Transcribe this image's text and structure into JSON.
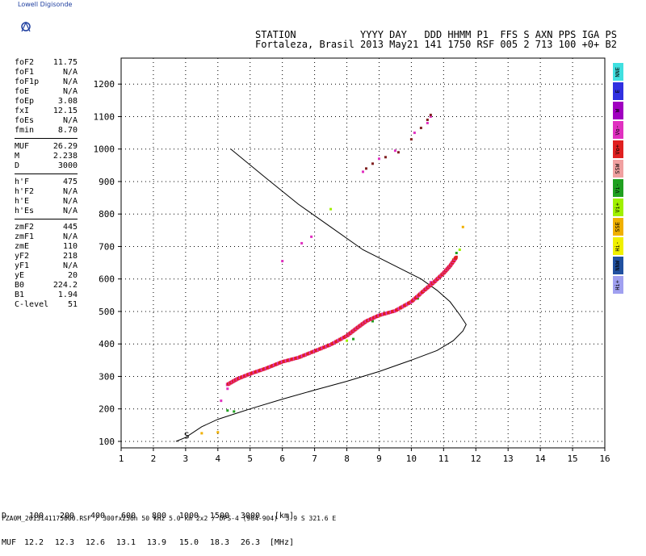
{
  "app_label": "Lowell Digisonde",
  "header": {
    "line1": "STATION           YYYY DAY   DDD HHMM P1  FFS S AXN PPS IGA PS",
    "line2": "Fortaleza, Brasil 2013 May21 141 1750 RSF 005 2 713 100 +0+ B2"
  },
  "params_group1": [
    {
      "name": "foF2",
      "value": "11.75"
    },
    {
      "name": "foF1",
      "value": "N/A"
    },
    {
      "name": "foF1p",
      "value": "N/A"
    },
    {
      "name": "foE",
      "value": "N/A"
    },
    {
      "name": "foEp",
      "value": "3.08"
    },
    {
      "name": "fxI",
      "value": "12.15"
    },
    {
      "name": "foEs",
      "value": "N/A"
    },
    {
      "name": "fmin",
      "value": "8.70"
    }
  ],
  "params_group2": [
    {
      "name": "MUF",
      "value": "26.29"
    },
    {
      "name": "M",
      "value": "2.238"
    },
    {
      "name": "D",
      "value": "3000"
    }
  ],
  "params_group3": [
    {
      "name": "h'F",
      "value": "475"
    },
    {
      "name": "h'F2",
      "value": "N/A"
    },
    {
      "name": "h'E",
      "value": "N/A"
    },
    {
      "name": "h'Es",
      "value": "N/A"
    }
  ],
  "params_group4": [
    {
      "name": "zmF2",
      "value": "445"
    },
    {
      "name": "zmF1",
      "value": "N/A"
    },
    {
      "name": "zmE",
      "value": "110"
    },
    {
      "name": "yF2",
      "value": "218"
    },
    {
      "name": "yF1",
      "value": "N/A"
    },
    {
      "name": "yE",
      "value": "20"
    },
    {
      "name": "B0",
      "value": "224.2"
    },
    {
      "name": "B1",
      "value": "1.94"
    },
    {
      "name": "C-level",
      "value": "51"
    }
  ],
  "legend": [
    {
      "label": "NNE",
      "color": "#40e0e0"
    },
    {
      "label": "E",
      "color": "#3030e0"
    },
    {
      "label": "W",
      "color": "#a000c0"
    },
    {
      "label": "Vo-",
      "color": "#e030c0"
    },
    {
      "label": "Vo+",
      "color": "#e02020"
    },
    {
      "label": "SSW",
      "color": "#f0a0a0"
    },
    {
      "label": "Vi-",
      "color": "#20a020"
    },
    {
      "label": "Vi+",
      "color": "#a0f000"
    },
    {
      "label": "SSE",
      "color": "#f0b000"
    },
    {
      "label": "Hi-",
      "color": "#f0f000"
    },
    {
      "label": "NNW",
      "color": "#2050a0"
    },
    {
      "label": "Hi+",
      "color": "#a0a0f0"
    }
  ],
  "muf_table": {
    "d_label": "D",
    "muf_label": "MUF",
    "d_values": [
      "100",
      "200",
      "400",
      "600",
      "800",
      "1000",
      "1500",
      "3000"
    ],
    "muf_values": [
      "12.2",
      "12.3",
      "12.6",
      "13.1",
      "13.9",
      "15.0",
      "18.3",
      "26.3"
    ],
    "d_unit": "[km]",
    "muf_unit": "[MHz]"
  },
  "footer": "FZA0M_2013141175000.RSF / 300fx256h 50 kHz 5.0 km 2x2 / DPS-4 (904-904)  3.9 S 321.6 E",
  "chart_data": {
    "type": "scatter",
    "title": "",
    "xlabel": "",
    "ylabel": "",
    "xlim": [
      1,
      16
    ],
    "ylim": [
      80,
      1280
    ],
    "x_ticks": [
      1,
      2,
      3,
      4,
      5,
      6,
      7,
      8,
      9,
      10,
      11,
      12,
      13,
      14,
      15,
      16
    ],
    "y_ticks": [
      100,
      200,
      300,
      400,
      500,
      600,
      700,
      800,
      900,
      1000,
      1100,
      1200
    ],
    "grid": "dotted",
    "series": [
      {
        "color": "#e02020",
        "points": [
          [
            4.3,
            275
          ],
          [
            4.6,
            292
          ],
          [
            5.0,
            308
          ],
          [
            5.5,
            325
          ],
          [
            6.0,
            345
          ],
          [
            6.5,
            358
          ],
          [
            7.0,
            378
          ],
          [
            7.5,
            398
          ],
          [
            8.0,
            425
          ],
          [
            8.3,
            448
          ],
          [
            8.6,
            470
          ],
          [
            9.0,
            488
          ],
          [
            9.5,
            502
          ],
          [
            10.0,
            530
          ],
          [
            10.4,
            565
          ],
          [
            10.7,
            590
          ],
          [
            11.0,
            618
          ],
          [
            11.2,
            640
          ],
          [
            11.4,
            668
          ]
        ]
      },
      {
        "color": "#e030c0",
        "points": [
          [
            4.1,
            225
          ],
          [
            4.3,
            262
          ],
          [
            4.6,
            290
          ],
          [
            5.0,
            305
          ],
          [
            5.6,
            330
          ],
          [
            6.2,
            348
          ],
          [
            10.6,
            590
          ],
          [
            6.0,
            655
          ],
          [
            6.6,
            710
          ],
          [
            6.9,
            730
          ],
          [
            8.5,
            930
          ],
          [
            9.0,
            970
          ],
          [
            9.5,
            995
          ],
          [
            10.1,
            1050
          ],
          [
            10.5,
            1080
          ],
          [
            10.6,
            1100
          ]
        ]
      },
      {
        "color": "#802020",
        "points": [
          [
            8.6,
            940
          ],
          [
            8.8,
            955
          ],
          [
            9.2,
            975
          ],
          [
            9.6,
            990
          ],
          [
            10.0,
            1030
          ],
          [
            10.3,
            1065
          ],
          [
            10.5,
            1090
          ],
          [
            10.6,
            1105
          ]
        ]
      },
      {
        "color": "#20a020",
        "points": [
          [
            4.3,
            195
          ],
          [
            4.5,
            192
          ],
          [
            8.2,
            415
          ],
          [
            8.8,
            470
          ],
          [
            9.3,
            495
          ],
          [
            10.2,
            540
          ],
          [
            11.4,
            680
          ]
        ]
      },
      {
        "color": "#a0f000",
        "points": [
          [
            7.5,
            815
          ],
          [
            8.0,
            410
          ],
          [
            9.0,
            485
          ],
          [
            11.3,
            660
          ],
          [
            11.5,
            690
          ]
        ]
      },
      {
        "color": "#f0b000",
        "points": [
          [
            3.5,
            125
          ],
          [
            4.0,
            128
          ],
          [
            11.6,
            760
          ]
        ]
      }
    ],
    "model_curve": [
      [
        2.7,
        100
      ],
      [
        3.0,
        112
      ],
      [
        3.5,
        145
      ],
      [
        4.0,
        168
      ],
      [
        5.0,
        200
      ],
      [
        6.0,
        230
      ],
      [
        7.0,
        258
      ],
      [
        8.0,
        285
      ],
      [
        9.0,
        315
      ],
      [
        10.0,
        350
      ],
      [
        10.8,
        380
      ],
      [
        11.3,
        410
      ],
      [
        11.6,
        440
      ],
      [
        11.7,
        460
      ],
      [
        11.5,
        490
      ],
      [
        11.2,
        530
      ],
      [
        10.8,
        565
      ],
      [
        10.3,
        600
      ],
      [
        9.5,
        640
      ],
      [
        8.5,
        690
      ],
      [
        7.5,
        760
      ],
      [
        6.5,
        830
      ],
      [
        5.5,
        910
      ],
      [
        4.4,
        1000
      ]
    ],
    "annotation": "S"
  }
}
